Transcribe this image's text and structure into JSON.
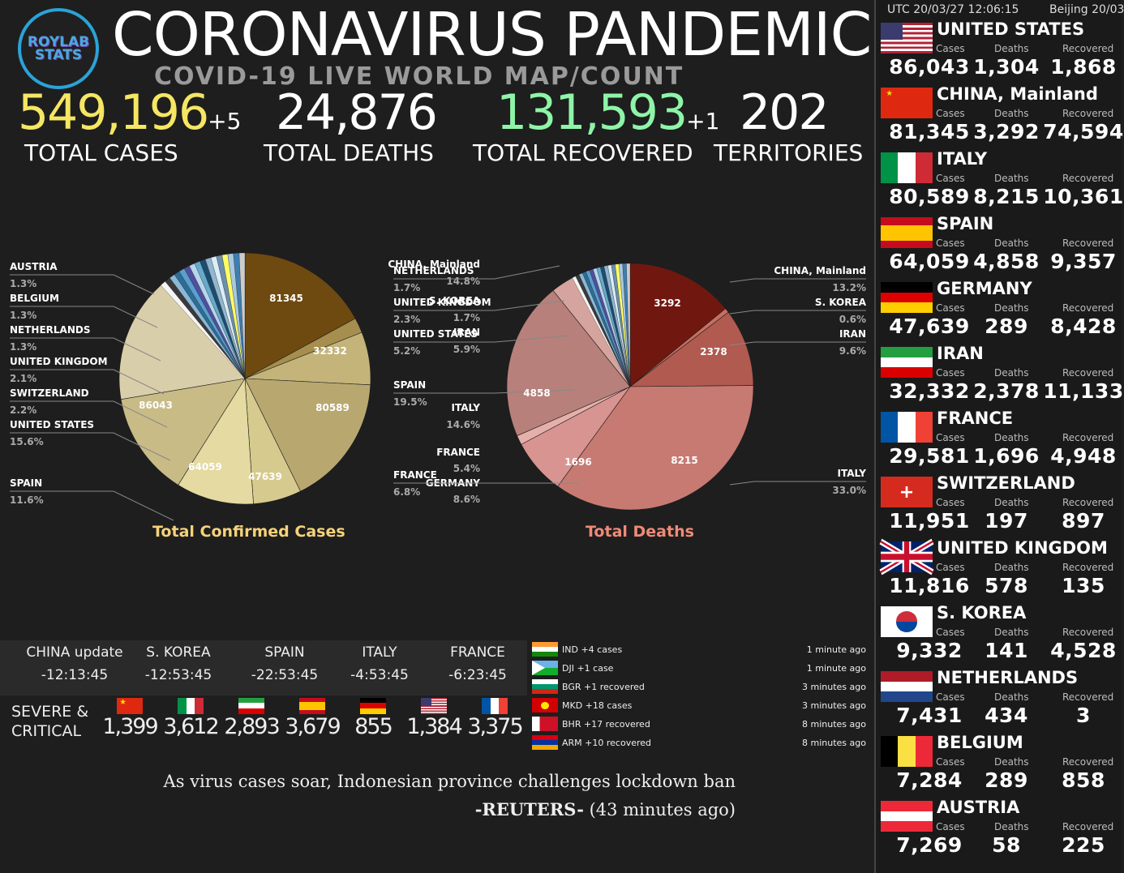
{
  "header": {
    "logo_line1": "ROYLAB",
    "logo_line2": "STATS",
    "title": "CORONAVIRUS PANDEMIC",
    "subtitle": "COVID-19 LIVE WORLD MAP/COUNT"
  },
  "totals": {
    "cases": "549,196",
    "cases_delta": "+5",
    "cases_label": "TOTAL CASES",
    "deaths": "24,876",
    "deaths_label": "TOTAL DEATHS",
    "recovered": "131,593",
    "recovered_delta": "+1",
    "recovered_label": "TOTAL RECOVERED",
    "territories": "202",
    "territories_label": "TERRITORIES"
  },
  "colors": {
    "cases": "#f5e663",
    "recovered": "#8ef5a8",
    "deaths_title": "#f08a78",
    "cases_title": "#f5d27a"
  },
  "chart_data": [
    {
      "type": "pie",
      "title": "Total Confirmed Cases",
      "slices": [
        {
          "name": "CHINA, Mainland",
          "value": 81345,
          "pct": "14.8%"
        },
        {
          "name": "S. KOREA",
          "value": 9332,
          "pct": "1.7%"
        },
        {
          "name": "IRAN",
          "value": 32332,
          "pct": "5.9%"
        },
        {
          "name": "ITALY",
          "value": 80589,
          "pct": "14.6%"
        },
        {
          "name": "FRANCE",
          "value": 29581,
          "pct": "5.4%"
        },
        {
          "name": "GERMANY",
          "value": 47639,
          "pct": "8.6%"
        },
        {
          "name": "SPAIN",
          "value": 64059,
          "pct": "11.6%"
        },
        {
          "name": "UNITED STATES",
          "value": 86043,
          "pct": "15.6%"
        },
        {
          "name": "SWITZERLAND",
          "value": 11951,
          "pct": "2.2%"
        },
        {
          "name": "UNITED KINGDOM",
          "value": 11816,
          "pct": "2.1%"
        },
        {
          "name": "NETHERLANDS",
          "value": 7431,
          "pct": "1.3%"
        },
        {
          "name": "BELGIUM",
          "value": 7284,
          "pct": "1.3%"
        },
        {
          "name": "AUSTRIA",
          "value": 7269,
          "pct": "1.3%"
        }
      ],
      "labels_left": [
        {
          "name": "AUSTRIA",
          "pct": "1.3%"
        },
        {
          "name": "BELGIUM",
          "pct": "1.3%"
        },
        {
          "name": "NETHERLANDS",
          "pct": "1.3%"
        },
        {
          "name": "UNITED KINGDOM",
          "pct": "2.1%"
        },
        {
          "name": "SWITZERLAND",
          "pct": "2.2%"
        },
        {
          "name": "UNITED STATES",
          "pct": "15.6%"
        },
        {
          "name": "SPAIN",
          "pct": "11.6%"
        }
      ],
      "labels_right": [
        {
          "name": "CHINA, Mainland",
          "pct": "14.8%"
        },
        {
          "name": "S. KOREA",
          "pct": "1.7%"
        },
        {
          "name": "IRAN",
          "pct": "5.9%"
        },
        {
          "name": "ITALY",
          "pct": "14.6%"
        },
        {
          "name": "FRANCE",
          "pct": "5.4%"
        },
        {
          "name": "GERMANY",
          "pct": "8.6%"
        }
      ],
      "inner_labels": [
        "81345",
        "32332",
        "80589",
        "86043",
        "64059",
        "47639"
      ]
    },
    {
      "type": "pie",
      "title": "Total Deaths",
      "slices": [
        {
          "name": "CHINA, Mainland",
          "value": 3292,
          "pct": "13.2%"
        },
        {
          "name": "S. KOREA",
          "value": 141,
          "pct": "0.6%"
        },
        {
          "name": "IRAN",
          "value": 2378,
          "pct": "9.6%"
        },
        {
          "name": "ITALY",
          "value": 8215,
          "pct": "33.0%"
        },
        {
          "name": "FRANCE",
          "value": 1696,
          "pct": "6.8%"
        },
        {
          "name": "GERMANY",
          "value": 289
        },
        {
          "name": "SPAIN",
          "value": 4858,
          "pct": "19.5%"
        },
        {
          "name": "UNITED STATES",
          "value": 1304,
          "pct": "5.2%"
        },
        {
          "name": "SWITZERLAND",
          "value": 197
        },
        {
          "name": "UNITED KINGDOM",
          "value": 578,
          "pct": "2.3%"
        },
        {
          "name": "NETHERLANDS",
          "value": 434,
          "pct": "1.7%"
        }
      ],
      "labels_left": [
        {
          "name": "NETHERLANDS",
          "pct": "1.7%"
        },
        {
          "name": "UNITED KINGDOM",
          "pct": "2.3%"
        },
        {
          "name": "UNITED STATES",
          "pct": "5.2%"
        },
        {
          "name": "SPAIN",
          "pct": "19.5%"
        },
        {
          "name": "FRANCE",
          "pct": "6.8%"
        }
      ],
      "labels_right": [
        {
          "name": "CHINA, Mainland",
          "pct": "13.2%"
        },
        {
          "name": "S. KOREA",
          "pct": "0.6%"
        },
        {
          "name": "IRAN",
          "pct": "9.6%"
        },
        {
          "name": "ITALY",
          "pct": "33.0%"
        }
      ],
      "inner_labels": [
        "3292",
        "2378",
        "4858",
        "8215",
        "1696"
      ]
    }
  ],
  "updates": [
    {
      "name": "CHINA update",
      "time": "-12:13:45"
    },
    {
      "name": "S. KOREA",
      "time": "-12:53:45"
    },
    {
      "name": "SPAIN",
      "time": "-22:53:45"
    },
    {
      "name": "ITALY",
      "time": "-4:53:45"
    },
    {
      "name": "FRANCE",
      "time": "-6:23:45"
    }
  ],
  "severe": {
    "label_line1": "SEVERE &",
    "label_line2": "CRITICAL",
    "values": [
      {
        "flag": "china-flag-icon",
        "value": "1,399"
      },
      {
        "flag": "italy-flag-icon",
        "value": "3,612"
      },
      {
        "flag": "iran-flag-icon",
        "value": "2,893"
      },
      {
        "flag": "spain-flag-icon",
        "value": "3,679"
      },
      {
        "flag": "germany-flag-icon",
        "value": "855"
      },
      {
        "flag": "usa-flag-icon",
        "value": "1,384"
      },
      {
        "flag": "france-flag-icon",
        "value": "3,375"
      }
    ]
  },
  "feed": [
    {
      "flag": "india-flag-icon",
      "text": "IND +4 cases",
      "time": "1 minute ago"
    },
    {
      "flag": "djibouti-flag-icon",
      "text": "DJI +1 case",
      "time": "1 minute ago"
    },
    {
      "flag": "bulgaria-flag-icon",
      "text": "BGR +1 recovered",
      "time": "3 minutes ago"
    },
    {
      "flag": "macedonia-flag-icon",
      "text": "MKD +18 cases",
      "time": "3 minutes ago"
    },
    {
      "flag": "bahrain-flag-icon",
      "text": "BHR +17 recovered",
      "time": "8 minutes ago"
    },
    {
      "flag": "armenia-flag-icon",
      "text": "ARM +10 recovered",
      "time": "8 minutes ago"
    }
  ],
  "news": {
    "headline": "As virus cases soar, Indonesian province challenges lockdown ban",
    "source": "-REUTERS-",
    "age": "(43 minutes ago)"
  },
  "sidebar": {
    "utc": "UTC 20/03/27 12:06:15",
    "beijing": "Beijing 20/03",
    "labels": {
      "cases": "Cases",
      "deaths": "Deaths",
      "recovered": "Recovered"
    },
    "countries": [
      {
        "name": "UNITED STATES",
        "flag": "usa-flag-icon",
        "cases": "86,043",
        "deaths": "1,304",
        "recovered": "1,868"
      },
      {
        "name": "CHINA, Mainland",
        "flag": "china-flag-icon",
        "cases": "81,345",
        "deaths": "3,292",
        "recovered": "74,594"
      },
      {
        "name": "ITALY",
        "flag": "italy-flag-icon",
        "cases": "80,589",
        "deaths": "8,215",
        "recovered": "10,361"
      },
      {
        "name": "SPAIN",
        "flag": "spain-flag-icon",
        "cases": "64,059",
        "deaths": "4,858",
        "recovered": "9,357"
      },
      {
        "name": "GERMANY",
        "flag": "germany-flag-icon",
        "cases": "47,639",
        "deaths": "289",
        "recovered": "8,428"
      },
      {
        "name": "IRAN",
        "flag": "iran-flag-icon",
        "cases": "32,332",
        "deaths": "2,378",
        "recovered": "11,133"
      },
      {
        "name": "FRANCE",
        "flag": "france-flag-icon",
        "cases": "29,581",
        "deaths": "1,696",
        "recovered": "4,948"
      },
      {
        "name": "SWITZERLAND",
        "flag": "switzerland-flag-icon",
        "cases": "11,951",
        "deaths": "197",
        "recovered": "897"
      },
      {
        "name": "UNITED KINGDOM",
        "flag": "uk-flag-icon",
        "cases": "11,816",
        "deaths": "578",
        "recovered": "135"
      },
      {
        "name": "S. KOREA",
        "flag": "south-korea-flag-icon",
        "cases": "9,332",
        "deaths": "141",
        "recovered": "4,528"
      },
      {
        "name": "NETHERLANDS",
        "flag": "netherlands-flag-icon",
        "cases": "7,431",
        "deaths": "434",
        "recovered": "3"
      },
      {
        "name": "BELGIUM",
        "flag": "belgium-flag-icon",
        "cases": "7,284",
        "deaths": "289",
        "recovered": "858"
      },
      {
        "name": "AUSTRIA",
        "flag": "austria-flag-icon",
        "cases": "7,269",
        "deaths": "58",
        "recovered": "225"
      }
    ]
  }
}
